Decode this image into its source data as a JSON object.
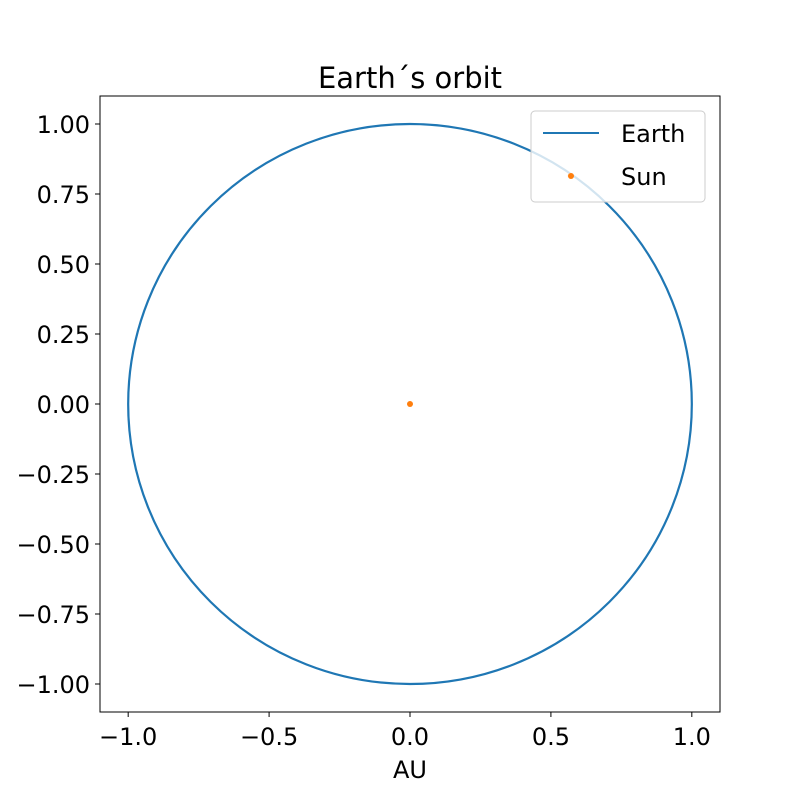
{
  "chart_data": {
    "type": "scatter",
    "title": "Earth´s orbit",
    "xlabel": "AU",
    "ylabel": "",
    "xlim": [
      -1.1,
      1.1
    ],
    "ylim": [
      -1.1,
      1.1
    ],
    "x_ticks": [
      -1.0,
      -0.5,
      0.0,
      0.5,
      1.0
    ],
    "x_tick_labels": [
      "−1.0",
      "−0.5",
      "0.0",
      "0.5",
      "1.0"
    ],
    "y_ticks": [
      1.0,
      0.75,
      0.5,
      0.25,
      0.0,
      -0.25,
      -0.5,
      -0.75,
      -1.0
    ],
    "y_tick_labels": [
      "1.00",
      "0.75",
      "0.50",
      "0.25",
      "0.00",
      "−0.25",
      "−0.50",
      "−0.75",
      "−1.00"
    ],
    "grid": false,
    "legend_position": "top-right",
    "series": [
      {
        "name": "Earth",
        "kind": "line",
        "color": "#1f77b4",
        "shape": "circle",
        "center": [
          0.0,
          0.0
        ],
        "radius": 1.0
      },
      {
        "name": "Sun",
        "kind": "point",
        "color": "#ff7f0e",
        "points": [
          [
            0.0,
            0.0
          ],
          [
            0.57,
            0.815
          ]
        ]
      }
    ]
  }
}
